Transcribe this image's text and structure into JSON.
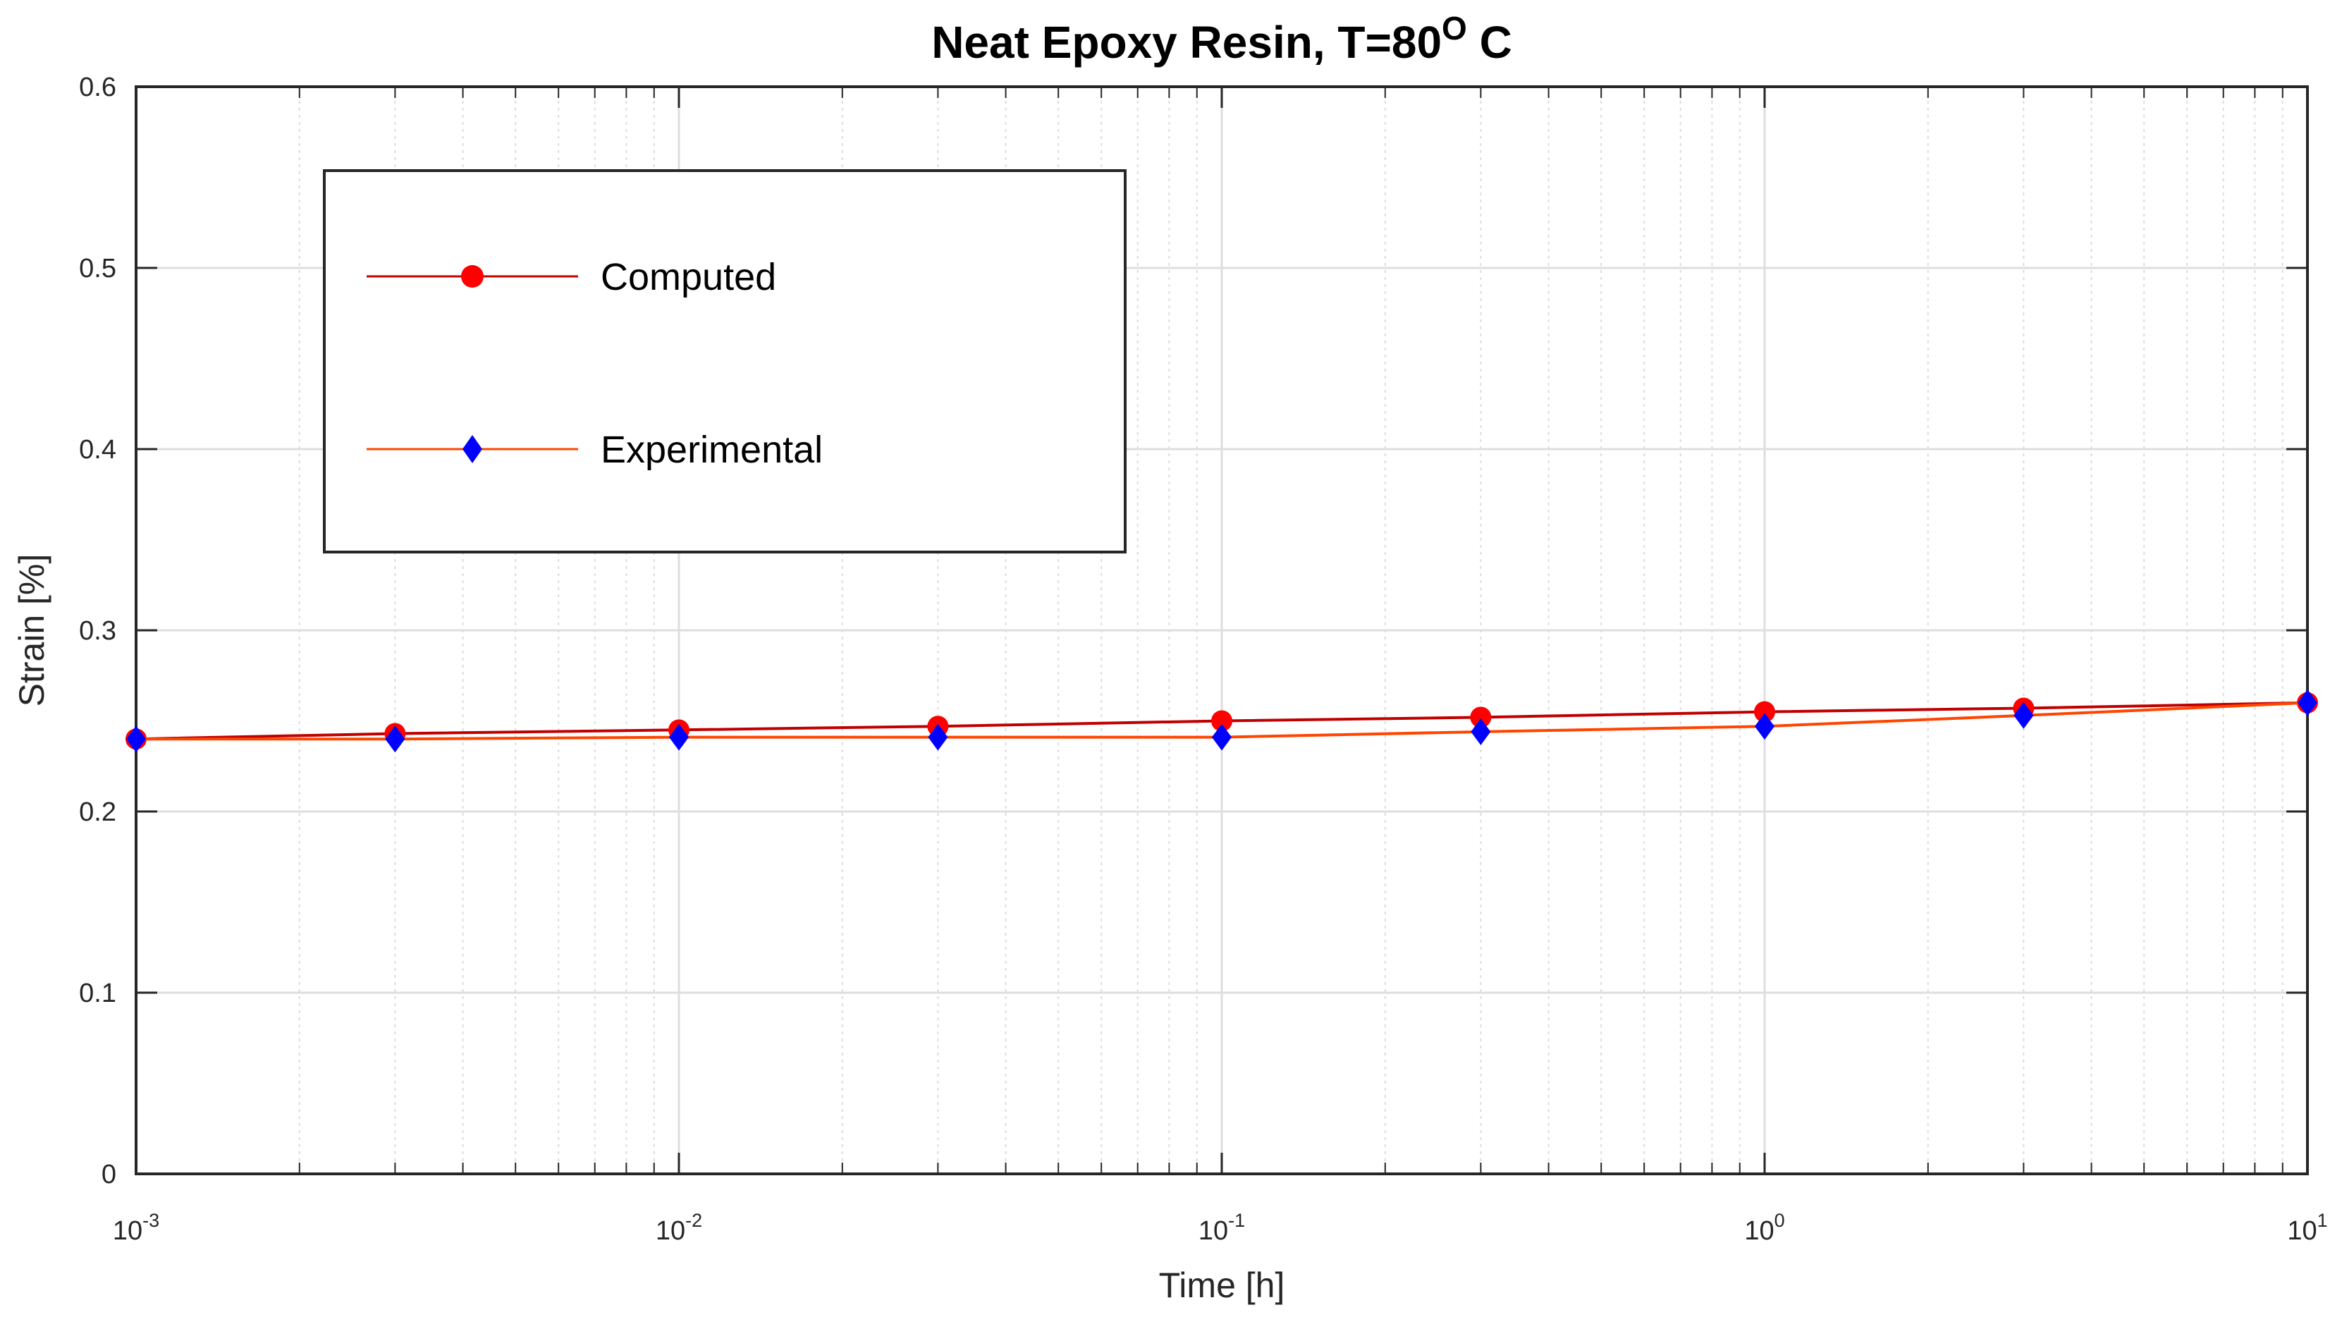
{
  "chart_data": {
    "type": "line",
    "title": "Neat Epoxy Resin, T=80",
    "title_superscript": "O",
    "title_suffix": " C",
    "xlabel": "Time [h]",
    "ylabel": "Strain [%]",
    "x_scale": "log",
    "xlim": [
      0.001,
      10
    ],
    "ylim": [
      0,
      0.6
    ],
    "grid": true,
    "legend_position": "top-left",
    "x_ticks": [
      {
        "base": "10",
        "exp": "-3",
        "value": 0.001
      },
      {
        "base": "10",
        "exp": "-2",
        "value": 0.01
      },
      {
        "base": "10",
        "exp": "-1",
        "value": 0.1
      },
      {
        "base": "10",
        "exp": "0",
        "value": 1
      },
      {
        "base": "10",
        "exp": "1",
        "value": 10
      }
    ],
    "y_ticks": [
      "0",
      "0.1",
      "0.2",
      "0.3",
      "0.4",
      "0.5",
      "0.6"
    ],
    "series": [
      {
        "name": "Computed",
        "line_color": "#c00000",
        "marker_color": "#ff0000",
        "marker": "circle",
        "x": [
          0.001,
          0.003,
          0.01,
          0.03,
          0.1,
          0.3,
          1,
          3,
          10
        ],
        "y": [
          0.24,
          0.243,
          0.245,
          0.247,
          0.25,
          0.252,
          0.255,
          0.257,
          0.26
        ]
      },
      {
        "name": "Experimental",
        "line_color": "#ff4500",
        "marker_color": "#0000ff",
        "marker": "diamond",
        "x": [
          0.001,
          0.003,
          0.01,
          0.03,
          0.1,
          0.3,
          1,
          3,
          10
        ],
        "y": [
          0.24,
          0.24,
          0.241,
          0.241,
          0.241,
          0.244,
          0.247,
          0.253,
          0.26
        ]
      }
    ]
  }
}
